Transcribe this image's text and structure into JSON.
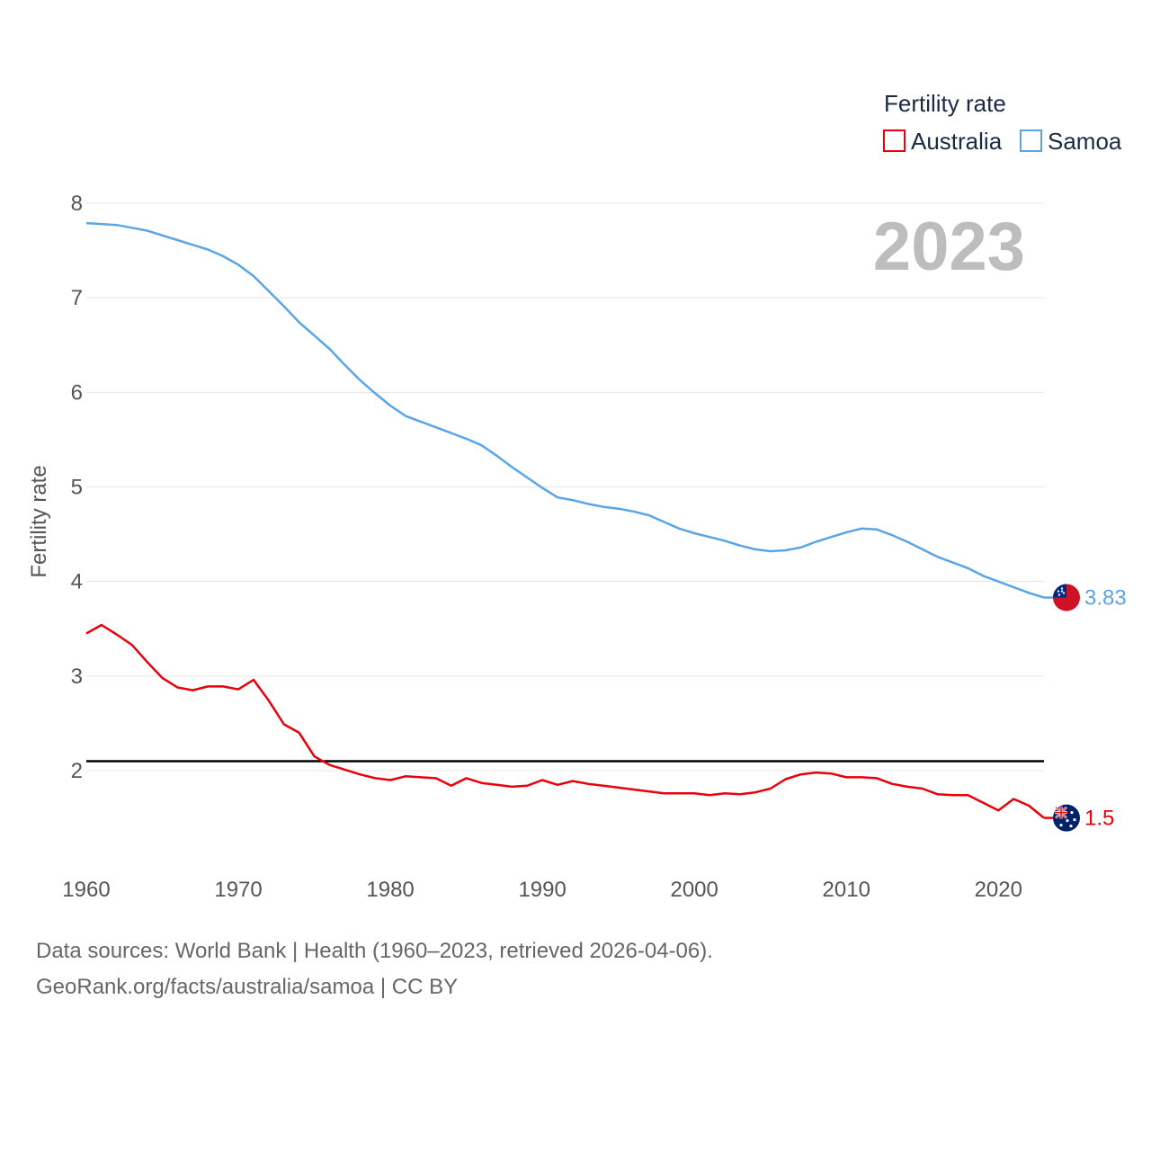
{
  "chart_data": {
    "type": "line",
    "ylabel": "Fertility rate",
    "xlabel": "",
    "legend_title": "Fertility rate",
    "legend_position": "top-right",
    "year_display": "2023",
    "xlim": [
      1960,
      2023
    ],
    "ylim": [
      1.0,
      8.2
    ],
    "x_ticks": [
      1960,
      1970,
      1980,
      1990,
      2000,
      2010,
      2020
    ],
    "y_ticks": [
      2,
      3,
      4,
      5,
      6,
      7,
      8
    ],
    "reference_line": 2.1,
    "x": [
      1960,
      1961,
      1962,
      1963,
      1964,
      1965,
      1966,
      1967,
      1968,
      1969,
      1970,
      1971,
      1972,
      1973,
      1974,
      1975,
      1976,
      1977,
      1978,
      1979,
      1980,
      1981,
      1982,
      1983,
      1984,
      1985,
      1986,
      1987,
      1988,
      1989,
      1990,
      1991,
      1992,
      1993,
      1994,
      1995,
      1996,
      1997,
      1998,
      1999,
      2000,
      2001,
      2002,
      2003,
      2004,
      2005,
      2006,
      2007,
      2008,
      2009,
      2010,
      2011,
      2012,
      2013,
      2014,
      2015,
      2016,
      2017,
      2018,
      2019,
      2020,
      2021,
      2022,
      2023
    ],
    "series": [
      {
        "name": "Australia",
        "color": "#e8000b",
        "end_label": "1.5",
        "flag": "australia-flag",
        "values": [
          3.45,
          3.54,
          3.44,
          3.33,
          3.15,
          2.98,
          2.88,
          2.85,
          2.89,
          2.89,
          2.86,
          2.96,
          2.74,
          2.49,
          2.4,
          2.15,
          2.06,
          2.01,
          1.96,
          1.92,
          1.9,
          1.94,
          1.93,
          1.92,
          1.84,
          1.92,
          1.87,
          1.85,
          1.83,
          1.84,
          1.9,
          1.85,
          1.89,
          1.86,
          1.84,
          1.82,
          1.8,
          1.78,
          1.76,
          1.76,
          1.76,
          1.74,
          1.76,
          1.75,
          1.77,
          1.81,
          1.91,
          1.96,
          1.98,
          1.97,
          1.93,
          1.93,
          1.92,
          1.86,
          1.83,
          1.81,
          1.75,
          1.74,
          1.74,
          1.66,
          1.58,
          1.7,
          1.63,
          1.5
        ]
      },
      {
        "name": "Samoa",
        "color": "#5aa5e6",
        "end_label": "3.83",
        "flag": "samoa-flag",
        "values": [
          7.79,
          7.78,
          7.77,
          7.74,
          7.71,
          7.66,
          7.61,
          7.56,
          7.51,
          7.44,
          7.35,
          7.23,
          7.07,
          6.91,
          6.74,
          6.6,
          6.46,
          6.29,
          6.13,
          5.99,
          5.86,
          5.75,
          5.69,
          5.63,
          5.57,
          5.51,
          5.44,
          5.33,
          5.21,
          5.1,
          4.99,
          4.89,
          4.86,
          4.82,
          4.79,
          4.77,
          4.74,
          4.7,
          4.63,
          4.56,
          4.51,
          4.47,
          4.43,
          4.38,
          4.34,
          4.32,
          4.33,
          4.36,
          4.42,
          4.47,
          4.52,
          4.56,
          4.55,
          4.49,
          4.42,
          4.34,
          4.26,
          4.2,
          4.14,
          4.06,
          4.0,
          3.94,
          3.88,
          3.83
        ]
      }
    ]
  },
  "footer": {
    "sources": "Data sources: World Bank | Health (1960–2023, retrieved 2026-04-06).",
    "attribution": "GeoRank.org/facts/australia/samoa | CC BY"
  }
}
